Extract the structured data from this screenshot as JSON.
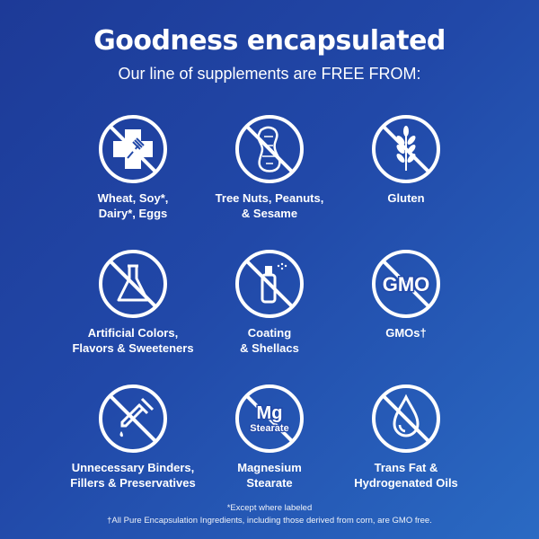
{
  "header": {
    "title": "Goodness encapsulated",
    "subtitle": "Our line of supplements are FREE FROM:"
  },
  "items": [
    {
      "icon": "wheat-soy-dairy-eggs-icon",
      "line1": "Wheat, Soy*,",
      "line2": "Dairy*, Eggs"
    },
    {
      "icon": "peanut-icon",
      "line1": "Tree Nuts, Peanuts,",
      "line2": "& Sesame"
    },
    {
      "icon": "wheat-grain-icon",
      "line1": "Gluten",
      "line2": ""
    },
    {
      "icon": "flask-icon",
      "line1": "Artificial Colors,",
      "line2": "Flavors & Sweeteners"
    },
    {
      "icon": "spray-bottle-icon",
      "line1": "Coating",
      "line2": "& Shellacs"
    },
    {
      "icon": "gmo-icon",
      "icon_text": "GMO",
      "line1": "GMOs†",
      "line2": ""
    },
    {
      "icon": "dropper-icon",
      "line1": "Unnecessary Binders,",
      "line2": "Fillers & Preservatives"
    },
    {
      "icon": "mg-stearate-icon",
      "icon_text": "Mg",
      "icon_subtext": "Stearate",
      "line1": "Magnesium",
      "line2": "Stearate"
    },
    {
      "icon": "oil-drop-icon",
      "line1": "Trans Fat &",
      "line2": "Hydrogenated Oils"
    }
  ],
  "footnotes": [
    "*Except where labeled",
    "†All Pure Encapsulation Ingredients, including those derived from corn, are GMO free."
  ],
  "colors": {
    "background_start": "#1d3a97",
    "background_end": "#2a6ac3",
    "foreground": "#ffffff"
  }
}
